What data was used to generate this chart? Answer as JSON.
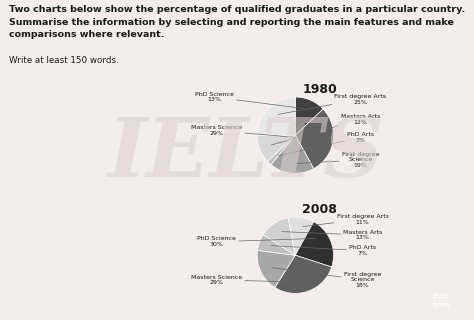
{
  "title_line1": "Two charts below show the percentage of qualified graduates in a particular country.",
  "title_line2": "Summarise the information by selecting and reporting the main features and make",
  "title_line3": "comparisons where relevant.",
  "subtitle": "Write at least 150 words.",
  "chart1_year": "1980",
  "chart1_labels": [
    "PhD Science",
    "Masters Science",
    "First degree\nScience",
    "PhD Arts",
    "Masters Arts",
    "First degree Arts"
  ],
  "chart1_values": [
    13,
    29,
    19,
    2,
    12,
    25
  ],
  "chart1_colors": [
    "#404040",
    "#606060",
    "#a0a0a0",
    "#c0c0c0",
    "#d8d8d8",
    "#e8e8e8"
  ],
  "chart2_year": "2008",
  "chart2_labels": [
    "PhD Science",
    "Masters Science",
    "First degree\nScience",
    "PhD Arts",
    "Masters Arts",
    "First degree Arts"
  ],
  "chart2_values": [
    30,
    29,
    18,
    7,
    13,
    11
  ],
  "chart2_colors": [
    "#303030",
    "#606060",
    "#a8a8a8",
    "#c0c0c0",
    "#d0d0d0",
    "#e0e0e0"
  ],
  "bg_color": "#f5ecec",
  "box_color": "#ffffff",
  "text_color": "#1a1a1a",
  "label_fontsize": 4.5,
  "year_fontsize": 9,
  "title_fontsize": 6.8
}
